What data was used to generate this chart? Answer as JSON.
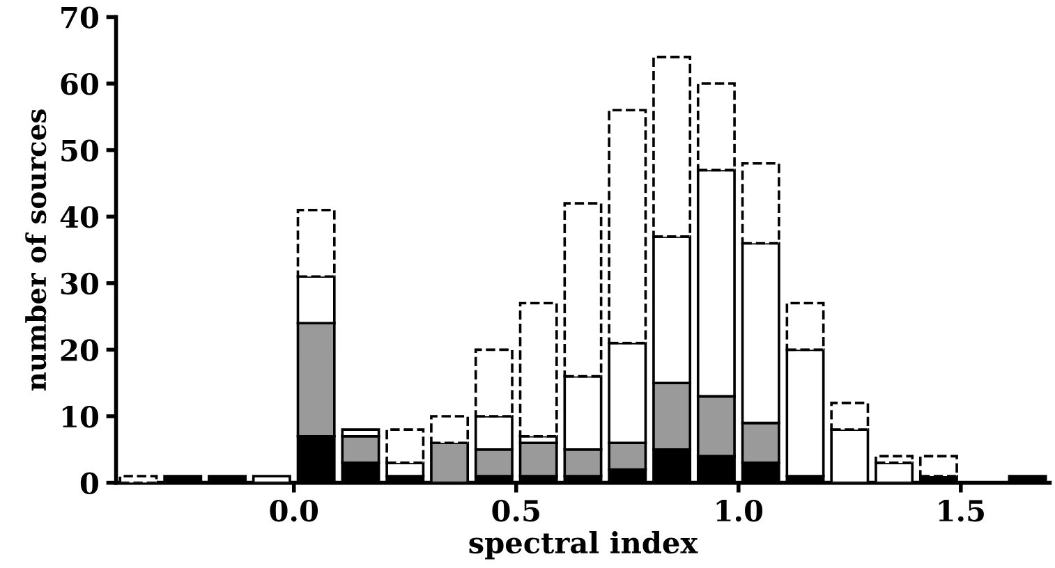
{
  "chart_data": {
    "type": "bar",
    "xlabel": "spectral index",
    "ylabel": "number of sources",
    "x": [
      -0.35,
      -0.25,
      -0.15,
      -0.05,
      0.05,
      0.15,
      0.25,
      0.35,
      0.45,
      0.55,
      0.65,
      0.75,
      0.85,
      0.95,
      1.05,
      1.15,
      1.25,
      1.35,
      1.45,
      1.55,
      1.65
    ],
    "stacked": true,
    "series": [
      {
        "color": "#000000",
        "line_style": "solid",
        "values": [
          0,
          1,
          1,
          0,
          7,
          3,
          1,
          0,
          1,
          1,
          1,
          2,
          5,
          4,
          3,
          1,
          0,
          0,
          1,
          0,
          1
        ]
      },
      {
        "color": "#9a9a9a",
        "line_style": "solid",
        "values": [
          0,
          0,
          0,
          0,
          17,
          4,
          0,
          6,
          4,
          5,
          4,
          4,
          10,
          9,
          6,
          0,
          0,
          0,
          0,
          0,
          0
        ]
      },
      {
        "color": "#ffffff",
        "line_style": "solid",
        "values": [
          0,
          0,
          0,
          1,
          7,
          1,
          2,
          0,
          5,
          1,
          11,
          15,
          22,
          34,
          27,
          19,
          8,
          3,
          0,
          0,
          0
        ]
      },
      {
        "color": "#ffffff",
        "line_style": "dashed",
        "values": [
          1,
          0,
          0,
          0,
          10,
          0,
          5,
          4,
          10,
          20,
          26,
          35,
          27,
          13,
          12,
          7,
          4,
          1,
          3,
          0,
          0
        ]
      }
    ],
    "xlim": [
      -0.4,
      1.7
    ],
    "xticks": [
      {
        "value": 0.0,
        "label": "0.0"
      },
      0.5,
      {
        "value": 1.0,
        "label": "1.0"
      },
      1.5
    ],
    "ylim": [
      0,
      70
    ],
    "yticks": [
      0,
      10,
      20,
      30,
      40,
      50,
      60,
      70
    ],
    "grid": false
  }
}
